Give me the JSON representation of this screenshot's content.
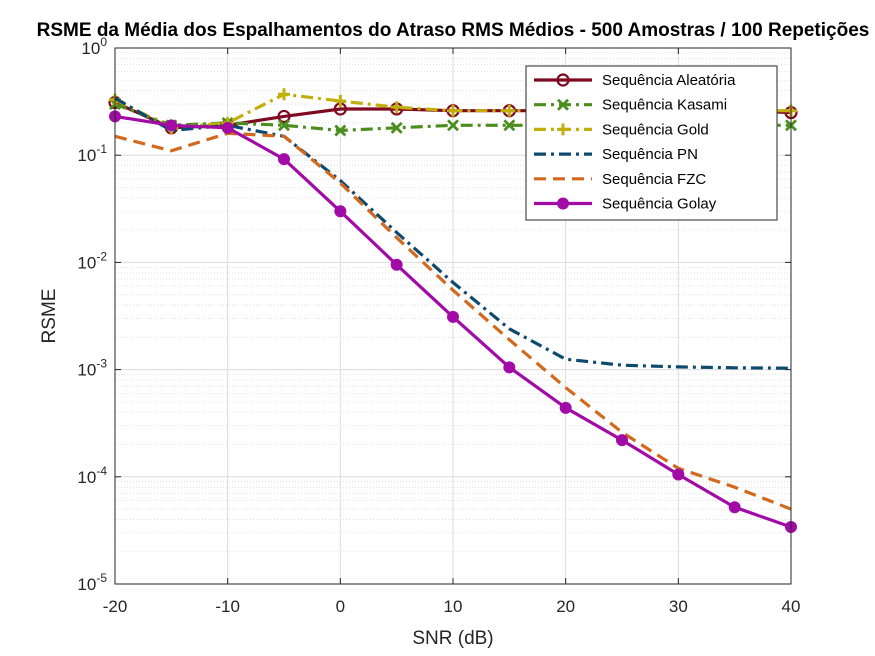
{
  "chart_data": {
    "type": "line",
    "title": "RSME da Média dos Espalhamentos do Atraso RMS Médios - 500 Amostras / 100 Repetições",
    "xlabel": "SNR (dB)",
    "ylabel": "RSME",
    "xlim": [
      -20,
      40
    ],
    "ylim": [
      1e-05,
      1
    ],
    "yscale": "log",
    "grid": true,
    "legend_position": "top-right",
    "x_ticks": [
      "-20",
      "-10",
      "0",
      "10",
      "20",
      "30",
      "40"
    ],
    "y_ticks": [
      {
        "base": "10",
        "exp": "-5"
      },
      {
        "base": "10",
        "exp": "-4"
      },
      {
        "base": "10",
        "exp": "-3"
      },
      {
        "base": "10",
        "exp": "-2"
      },
      {
        "base": "10",
        "exp": "-1"
      },
      {
        "base": "10",
        "exp": "0"
      }
    ],
    "x": [
      -20,
      -15,
      -10,
      -5,
      0,
      5,
      10,
      15,
      20,
      25,
      30,
      35,
      40
    ],
    "series": [
      {
        "name": "Sequência Aleatória",
        "color": "#7E0B22",
        "dash": "solid",
        "marker": "circle-open",
        "values": [
          0.31,
          0.18,
          0.19,
          0.23,
          0.27,
          0.27,
          0.26,
          0.26,
          0.26,
          0.26,
          0.26,
          0.26,
          0.25
        ]
      },
      {
        "name": "Sequência Kasami",
        "color": "#4C8E1E",
        "dash": "dashdot",
        "marker": "x",
        "values": [
          0.3,
          0.19,
          0.2,
          0.19,
          0.17,
          0.18,
          0.19,
          0.19,
          0.19,
          0.19,
          0.19,
          0.19,
          0.19
        ]
      },
      {
        "name": "Sequência Gold",
        "color": "#C2AE0D",
        "dash": "dashdot",
        "marker": "plus",
        "values": [
          0.33,
          0.18,
          0.2,
          0.37,
          0.32,
          0.28,
          0.26,
          0.26,
          0.26,
          0.26,
          0.26,
          0.26,
          0.26
        ]
      },
      {
        "name": "Sequência PN",
        "color": "#0E4A6E",
        "dash": "dashdot",
        "marker": "none",
        "values": [
          0.34,
          0.17,
          0.19,
          0.15,
          0.058,
          0.019,
          0.0065,
          0.0024,
          0.00125,
          0.0011,
          0.00106,
          0.00104,
          0.00103
        ]
      },
      {
        "name": "Sequência FZC",
        "color": "#D2691E",
        "dash": "dashed",
        "marker": "none",
        "values": [
          0.15,
          0.11,
          0.16,
          0.15,
          0.055,
          0.017,
          0.0055,
          0.0019,
          0.00068,
          0.00026,
          0.00012,
          8e-05,
          5e-05
        ]
      },
      {
        "name": "Sequência Golay",
        "color": "#A10CA6",
        "dash": "solid",
        "marker": "circle-filled",
        "values": [
          0.23,
          0.19,
          0.18,
          0.092,
          0.03,
          0.0095,
          0.0031,
          0.00105,
          0.00044,
          0.00022,
          0.000105,
          5.2e-05,
          3.4e-05
        ]
      }
    ]
  }
}
